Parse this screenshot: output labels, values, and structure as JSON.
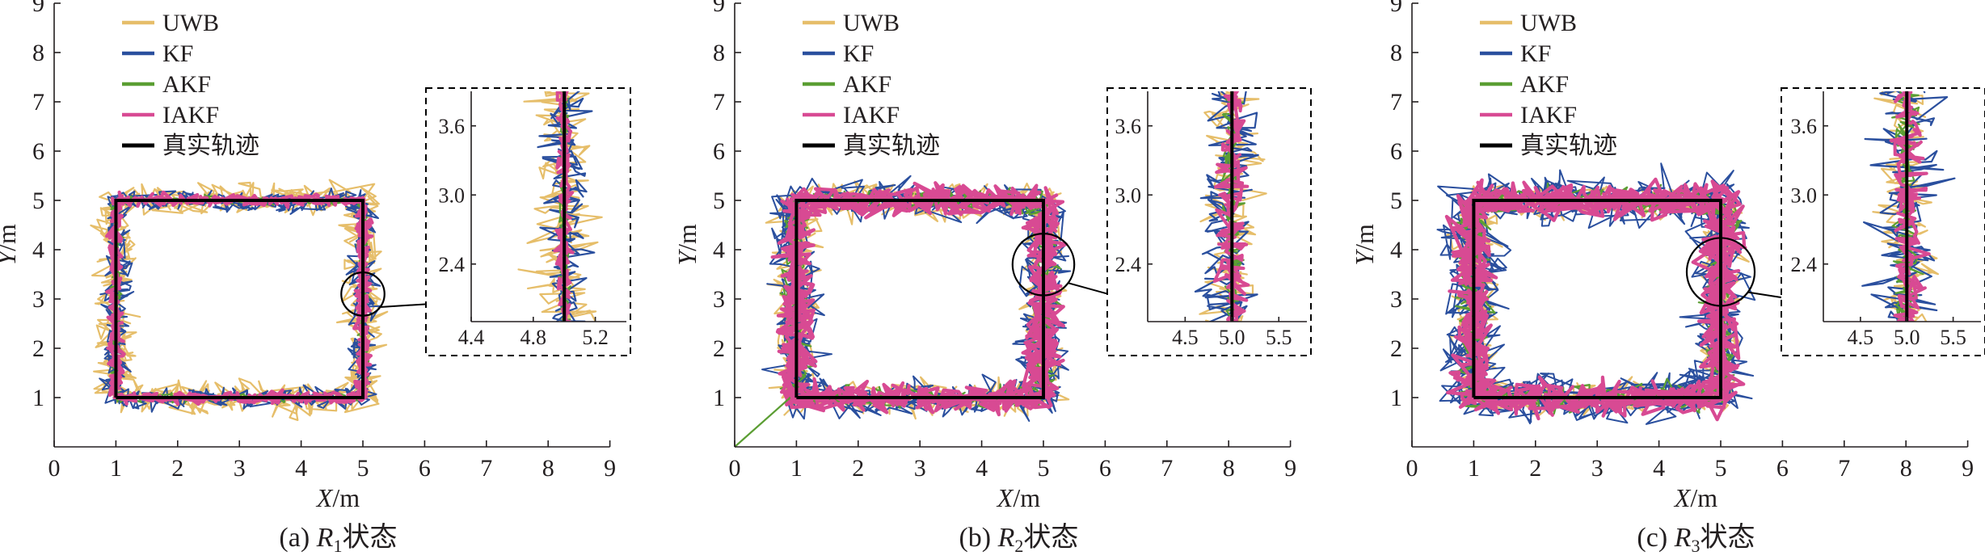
{
  "figure": {
    "legend": [
      {
        "key": "uwb",
        "label": "UWB",
        "color": "#e6be6a"
      },
      {
        "key": "kf",
        "label": "KF",
        "color": "#2a4f9e"
      },
      {
        "key": "akf",
        "label": "AKF",
        "color": "#5b9e33"
      },
      {
        "key": "iakf",
        "label": "IAKF",
        "color": "#d84a93"
      },
      {
        "key": "truth",
        "label": "真实轨迹",
        "color": "#000000"
      }
    ]
  },
  "chart_data": [
    {
      "type": "line",
      "panel": "a",
      "caption": {
        "prefix": "(a) ",
        "var": "R",
        "sub": "1",
        "suffix": "状态"
      },
      "xlabel": {
        "var": "X",
        "unit": "/m"
      },
      "ylabel": {
        "var": "Y",
        "unit": "/m"
      },
      "xlim": [
        0,
        9
      ],
      "ylim": [
        0,
        9
      ],
      "xticks": [
        "0",
        "1",
        "2",
        "3",
        "4",
        "5",
        "6",
        "7",
        "8",
        "9"
      ],
      "yticks": [
        "1",
        "2",
        "3",
        "4",
        "5",
        "6",
        "7",
        "8",
        "9"
      ],
      "true_trajectory": {
        "x": [
          1,
          5,
          5,
          1,
          1
        ],
        "y": [
          1,
          1,
          5,
          5,
          1
        ]
      },
      "noise_level": {
        "uwb": 0.28,
        "kf": 0.2,
        "akf": 0.08,
        "iakf": 0.1
      },
      "zoom_circle": {
        "center": [
          5.0,
          3.1
        ],
        "radius": 0.35
      },
      "inset": {
        "xlim": [
          4.4,
          5.4
        ],
        "ylim": [
          1.9,
          3.9
        ],
        "xticks": [
          "4.4",
          "4.8",
          "5.2"
        ],
        "yticks": [
          "2.4",
          "3.0",
          "3.6"
        ]
      },
      "tail": null
    },
    {
      "type": "line",
      "panel": "b",
      "caption": {
        "prefix": "(b) ",
        "var": "R",
        "sub": "2",
        "suffix": "状态"
      },
      "xlabel": {
        "var": "X",
        "unit": "/m"
      },
      "ylabel": {
        "var": "Y",
        "unit": "/m"
      },
      "xlim": [
        0,
        9
      ],
      "ylim": [
        0,
        9
      ],
      "xticks": [
        "0",
        "1",
        "2",
        "3",
        "4",
        "5",
        "6",
        "7",
        "8",
        "9"
      ],
      "yticks": [
        "1",
        "2",
        "3",
        "4",
        "5",
        "6",
        "7",
        "8",
        "9"
      ],
      "true_trajectory": {
        "x": [
          1,
          5,
          5,
          1,
          1
        ],
        "y": [
          1,
          1,
          5,
          5,
          1
        ]
      },
      "noise_level": {
        "uwb": 0.3,
        "kf": 0.35,
        "akf": 0.2,
        "iakf": 0.25
      },
      "zoom_circle": {
        "center": [
          5.0,
          3.7
        ],
        "radius": 0.5
      },
      "inset": {
        "xlim": [
          4.1,
          5.8
        ],
        "ylim": [
          1.9,
          3.9
        ],
        "xticks": [
          "4.5",
          "5.0",
          "5.5"
        ],
        "yticks": [
          "2.4",
          "3.0",
          "3.6"
        ]
      },
      "tail": {
        "x": [
          0,
          0.9
        ],
        "y": [
          0,
          1.0
        ]
      }
    },
    {
      "type": "line",
      "panel": "c",
      "caption": {
        "prefix": "(c) ",
        "var": "R",
        "sub": "3",
        "suffix": "状态"
      },
      "xlabel": {
        "var": "X",
        "unit": "/m"
      },
      "ylabel": {
        "var": "Y",
        "unit": "/m"
      },
      "xlim": [
        0,
        9
      ],
      "ylim": [
        0,
        9
      ],
      "xticks": [
        "0",
        "1",
        "2",
        "3",
        "4",
        "5",
        "6",
        "7",
        "8",
        "9"
      ],
      "yticks": [
        "1",
        "2",
        "3",
        "4",
        "5",
        "6",
        "7",
        "8",
        "9"
      ],
      "true_trajectory": {
        "x": [
          1,
          5,
          5,
          1,
          1
        ],
        "y": [
          1,
          1,
          5,
          5,
          1
        ]
      },
      "noise_level": {
        "uwb": 0.3,
        "kf": 0.45,
        "akf": 0.25,
        "iakf": 0.3
      },
      "zoom_circle": {
        "center": [
          5.0,
          3.55
        ],
        "radius": 0.55
      },
      "inset": {
        "xlim": [
          4.1,
          5.8
        ],
        "ylim": [
          1.9,
          3.9
        ],
        "xticks": [
          "4.5",
          "5.0",
          "5.5"
        ],
        "yticks": [
          "2.4",
          "3.0",
          "3.6"
        ]
      },
      "tail": null
    }
  ]
}
